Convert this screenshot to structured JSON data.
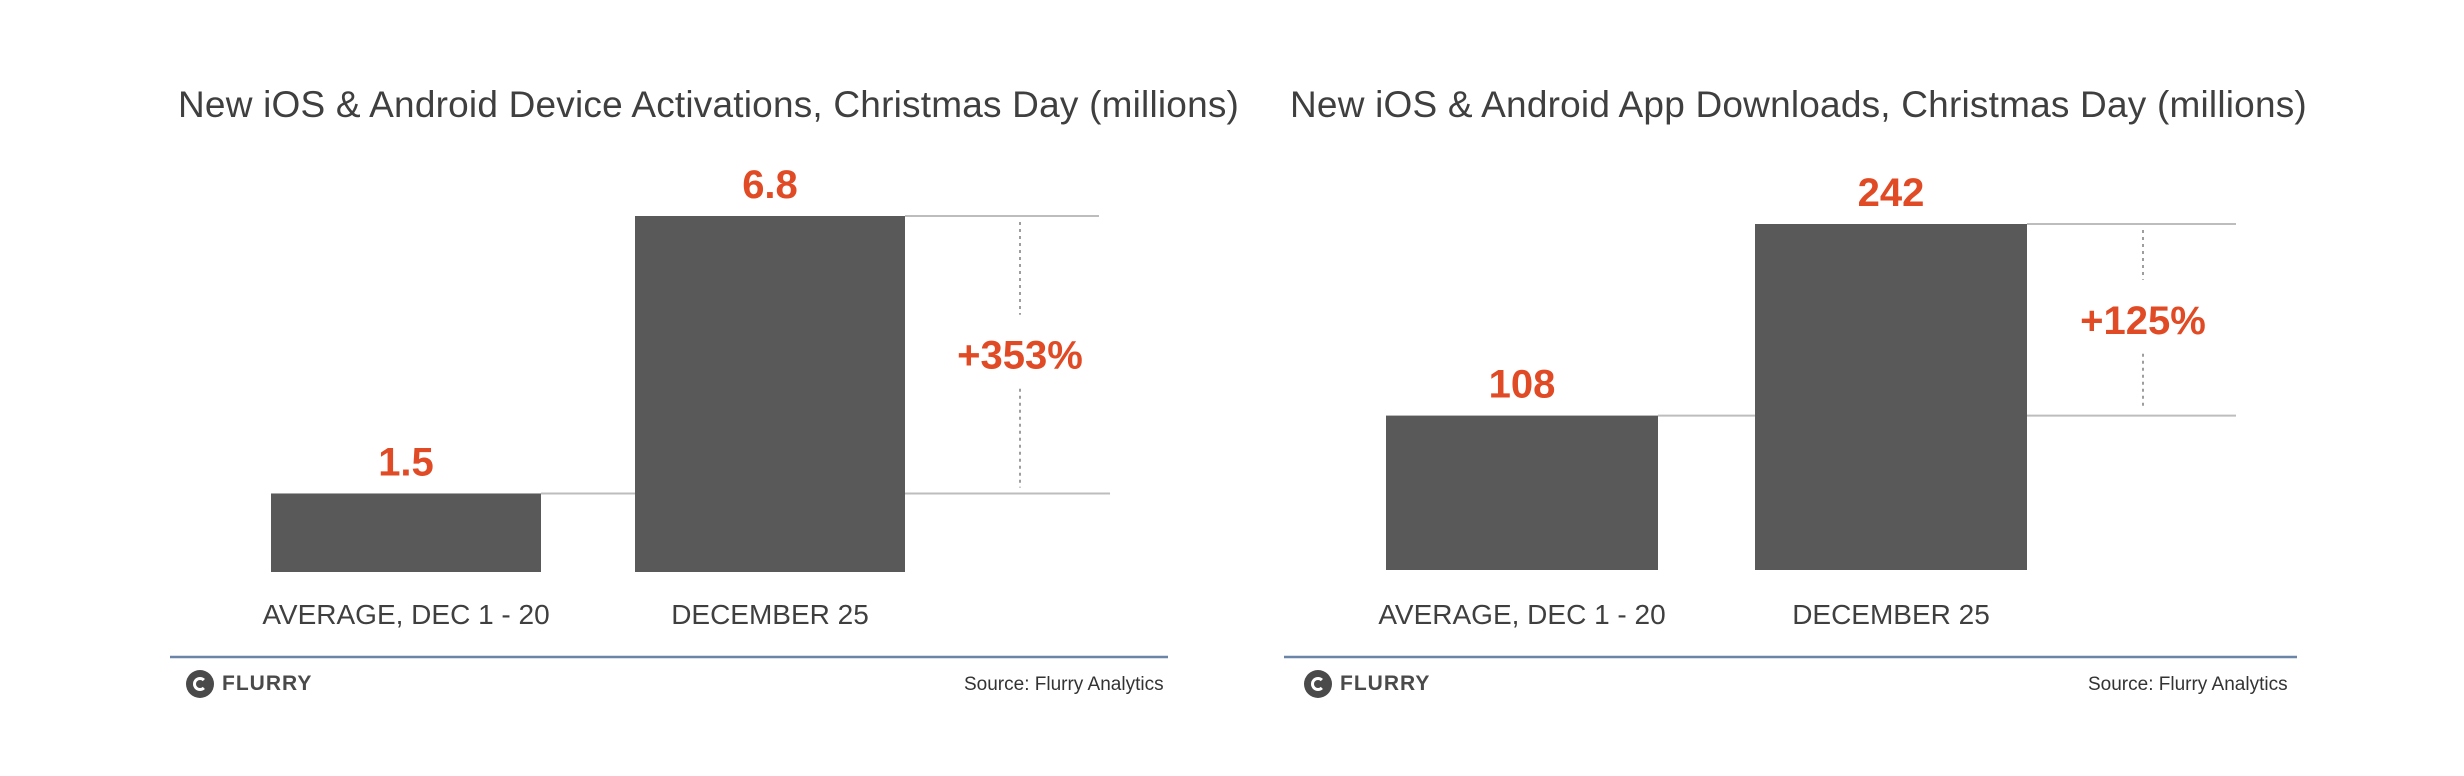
{
  "chart_data": [
    {
      "type": "bar",
      "title": "New iOS & Android Device Activations, Christmas Day (millions)",
      "categories": [
        "AVERAGE, DEC 1 - 20",
        "DECEMBER 25"
      ],
      "values": [
        1.5,
        6.8
      ],
      "value_labels": [
        "1.5",
        "6.8"
      ],
      "change_label": "+353%",
      "source": "Source: Flurry Analytics",
      "logo": "FLURRY",
      "ylim": [
        0,
        6.8
      ],
      "bar_color": "#595959",
      "label_color": "#e04a24"
    },
    {
      "type": "bar",
      "title": "New iOS & Android App Downloads, Christmas Day (millions)",
      "categories": [
        "AVERAGE, DEC 1 - 20",
        "DECEMBER 25"
      ],
      "values": [
        108,
        242
      ],
      "value_labels": [
        "108",
        "242"
      ],
      "change_label": "+125%",
      "source": "Source: Flurry Analytics",
      "logo": "FLURRY",
      "ylim": [
        0,
        242
      ],
      "bar_color": "#595959",
      "label_color": "#e04a24"
    }
  ]
}
